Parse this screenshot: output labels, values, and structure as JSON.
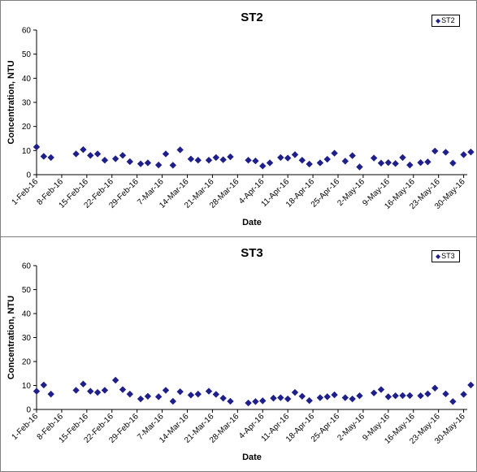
{
  "chart_data": [
    {
      "type": "scatter",
      "title": "ST2",
      "xlabel": "Date",
      "ylabel": "Concentration, NTU",
      "ylim": [
        0,
        60
      ],
      "yticks": [
        "0",
        "10",
        "20",
        "30",
        "40",
        "50",
        "60"
      ],
      "xticks": [
        "1-Feb-16",
        "8-Feb-16",
        "15-Feb-16",
        "22-Feb-16",
        "29-Feb-16",
        "7-Mar-16",
        "14-Mar-16",
        "21-Mar-16",
        "28-Mar-16",
        "4-Apr-16",
        "11-Apr-16",
        "18-Apr-16",
        "25-Apr-16",
        "2-May-16",
        "9-May-16",
        "16-May-16",
        "23-May-16",
        "30-May-16"
      ],
      "xlim": [
        "2016-02-01",
        "2016-05-31"
      ],
      "legend_position": "top-right",
      "grid": false,
      "marker_color": "#1f1f8a",
      "series": [
        {
          "name": "ST2",
          "points": [
            {
              "x": "2016-02-01",
              "y": 11.5
            },
            {
              "x": "2016-02-03",
              "y": 7.6
            },
            {
              "x": "2016-02-05",
              "y": 7.1
            },
            {
              "x": "2016-02-12",
              "y": 8.6
            },
            {
              "x": "2016-02-14",
              "y": 10.4
            },
            {
              "x": "2016-02-16",
              "y": 8.0
            },
            {
              "x": "2016-02-18",
              "y": 8.6
            },
            {
              "x": "2016-02-20",
              "y": 6.0
            },
            {
              "x": "2016-02-23",
              "y": 6.6
            },
            {
              "x": "2016-02-25",
              "y": 8.0
            },
            {
              "x": "2016-02-27",
              "y": 5.4
            },
            {
              "x": "2016-03-01",
              "y": 4.5
            },
            {
              "x": "2016-03-03",
              "y": 4.9
            },
            {
              "x": "2016-03-06",
              "y": 4.0
            },
            {
              "x": "2016-03-08",
              "y": 8.6
            },
            {
              "x": "2016-03-10",
              "y": 3.9
            },
            {
              "x": "2016-03-12",
              "y": 10.3
            },
            {
              "x": "2016-03-15",
              "y": 6.5
            },
            {
              "x": "2016-03-17",
              "y": 6.0
            },
            {
              "x": "2016-03-20",
              "y": 6.0
            },
            {
              "x": "2016-03-22",
              "y": 7.1
            },
            {
              "x": "2016-03-24",
              "y": 6.2
            },
            {
              "x": "2016-03-26",
              "y": 7.4
            },
            {
              "x": "2016-03-31",
              "y": 6.0
            },
            {
              "x": "2016-04-02",
              "y": 5.7
            },
            {
              "x": "2016-04-04",
              "y": 3.6
            },
            {
              "x": "2016-04-06",
              "y": 4.9
            },
            {
              "x": "2016-04-09",
              "y": 7.1
            },
            {
              "x": "2016-04-11",
              "y": 6.9
            },
            {
              "x": "2016-04-13",
              "y": 8.3
            },
            {
              "x": "2016-04-15",
              "y": 6.0
            },
            {
              "x": "2016-04-17",
              "y": 4.4
            },
            {
              "x": "2016-04-20",
              "y": 4.9
            },
            {
              "x": "2016-04-22",
              "y": 6.4
            },
            {
              "x": "2016-04-24",
              "y": 8.9
            },
            {
              "x": "2016-04-27",
              "y": 5.6
            },
            {
              "x": "2016-04-29",
              "y": 7.9
            },
            {
              "x": "2016-05-01",
              "y": 3.2
            },
            {
              "x": "2016-05-05",
              "y": 6.9
            },
            {
              "x": "2016-05-07",
              "y": 4.8
            },
            {
              "x": "2016-05-09",
              "y": 5.0
            },
            {
              "x": "2016-05-11",
              "y": 4.6
            },
            {
              "x": "2016-05-13",
              "y": 7.1
            },
            {
              "x": "2016-05-15",
              "y": 4.0
            },
            {
              "x": "2016-05-18",
              "y": 5.0
            },
            {
              "x": "2016-05-20",
              "y": 5.3
            },
            {
              "x": "2016-05-22",
              "y": 9.8
            },
            {
              "x": "2016-05-25",
              "y": 9.3
            },
            {
              "x": "2016-05-27",
              "y": 4.8
            },
            {
              "x": "2016-05-30",
              "y": 8.3
            },
            {
              "x": "2016-06-01",
              "y": 9.4
            }
          ]
        }
      ]
    },
    {
      "type": "scatter",
      "title": "ST3",
      "xlabel": "Date",
      "ylabel": "Concentration, NTU",
      "ylim": [
        0,
        60
      ],
      "yticks": [
        "0",
        "10",
        "20",
        "30",
        "40",
        "50",
        "60"
      ],
      "xticks": [
        "1-Feb-16",
        "8-Feb-16",
        "15-Feb-16",
        "22-Feb-16",
        "29-Feb-16",
        "7-Mar-16",
        "14-Mar-16",
        "21-Mar-16",
        "28-Mar-16",
        "4-Apr-16",
        "11-Apr-16",
        "18-Apr-16",
        "25-Apr-16",
        "2-May-16",
        "9-May-16",
        "16-May-16",
        "23-May-16",
        "30-May-16"
      ],
      "xlim": [
        "2016-02-01",
        "2016-05-31"
      ],
      "legend_position": "top-right",
      "grid": false,
      "marker_color": "#1f1f8a",
      "series": [
        {
          "name": "ST3",
          "points": [
            {
              "x": "2016-02-01",
              "y": 7.6
            },
            {
              "x": "2016-02-03",
              "y": 10.2
            },
            {
              "x": "2016-02-05",
              "y": 6.4
            },
            {
              "x": "2016-02-12",
              "y": 8.0
            },
            {
              "x": "2016-02-14",
              "y": 10.6
            },
            {
              "x": "2016-02-16",
              "y": 7.6
            },
            {
              "x": "2016-02-18",
              "y": 7.1
            },
            {
              "x": "2016-02-20",
              "y": 8.0
            },
            {
              "x": "2016-02-23",
              "y": 12.2
            },
            {
              "x": "2016-02-25",
              "y": 8.3
            },
            {
              "x": "2016-02-27",
              "y": 6.4
            },
            {
              "x": "2016-03-01",
              "y": 4.4
            },
            {
              "x": "2016-03-03",
              "y": 5.5
            },
            {
              "x": "2016-03-06",
              "y": 5.3
            },
            {
              "x": "2016-03-08",
              "y": 8.0
            },
            {
              "x": "2016-03-10",
              "y": 3.4
            },
            {
              "x": "2016-03-12",
              "y": 7.4
            },
            {
              "x": "2016-03-15",
              "y": 6.0
            },
            {
              "x": "2016-03-17",
              "y": 6.4
            },
            {
              "x": "2016-03-20",
              "y": 7.6
            },
            {
              "x": "2016-03-22",
              "y": 6.3
            },
            {
              "x": "2016-03-24",
              "y": 4.7
            },
            {
              "x": "2016-03-26",
              "y": 3.4
            },
            {
              "x": "2016-03-31",
              "y": 2.7
            },
            {
              "x": "2016-04-02",
              "y": 3.3
            },
            {
              "x": "2016-04-04",
              "y": 3.6
            },
            {
              "x": "2016-04-07",
              "y": 4.7
            },
            {
              "x": "2016-04-09",
              "y": 4.9
            },
            {
              "x": "2016-04-11",
              "y": 4.4
            },
            {
              "x": "2016-04-13",
              "y": 7.1
            },
            {
              "x": "2016-04-15",
              "y": 5.5
            },
            {
              "x": "2016-04-17",
              "y": 3.7
            },
            {
              "x": "2016-04-20",
              "y": 4.9
            },
            {
              "x": "2016-04-22",
              "y": 5.3
            },
            {
              "x": "2016-04-24",
              "y": 6.1
            },
            {
              "x": "2016-04-27",
              "y": 4.9
            },
            {
              "x": "2016-04-29",
              "y": 4.4
            },
            {
              "x": "2016-05-01",
              "y": 5.7
            },
            {
              "x": "2016-05-05",
              "y": 6.9
            },
            {
              "x": "2016-05-07",
              "y": 8.3
            },
            {
              "x": "2016-05-09",
              "y": 5.3
            },
            {
              "x": "2016-05-11",
              "y": 5.7
            },
            {
              "x": "2016-05-13",
              "y": 5.8
            },
            {
              "x": "2016-05-15",
              "y": 5.8
            },
            {
              "x": "2016-05-18",
              "y": 5.7
            },
            {
              "x": "2016-05-20",
              "y": 6.5
            },
            {
              "x": "2016-05-22",
              "y": 8.9
            },
            {
              "x": "2016-05-25",
              "y": 6.5
            },
            {
              "x": "2016-05-27",
              "y": 3.3
            },
            {
              "x": "2016-05-30",
              "y": 6.3
            },
            {
              "x": "2016-06-01",
              "y": 10.2
            }
          ]
        }
      ]
    }
  ]
}
